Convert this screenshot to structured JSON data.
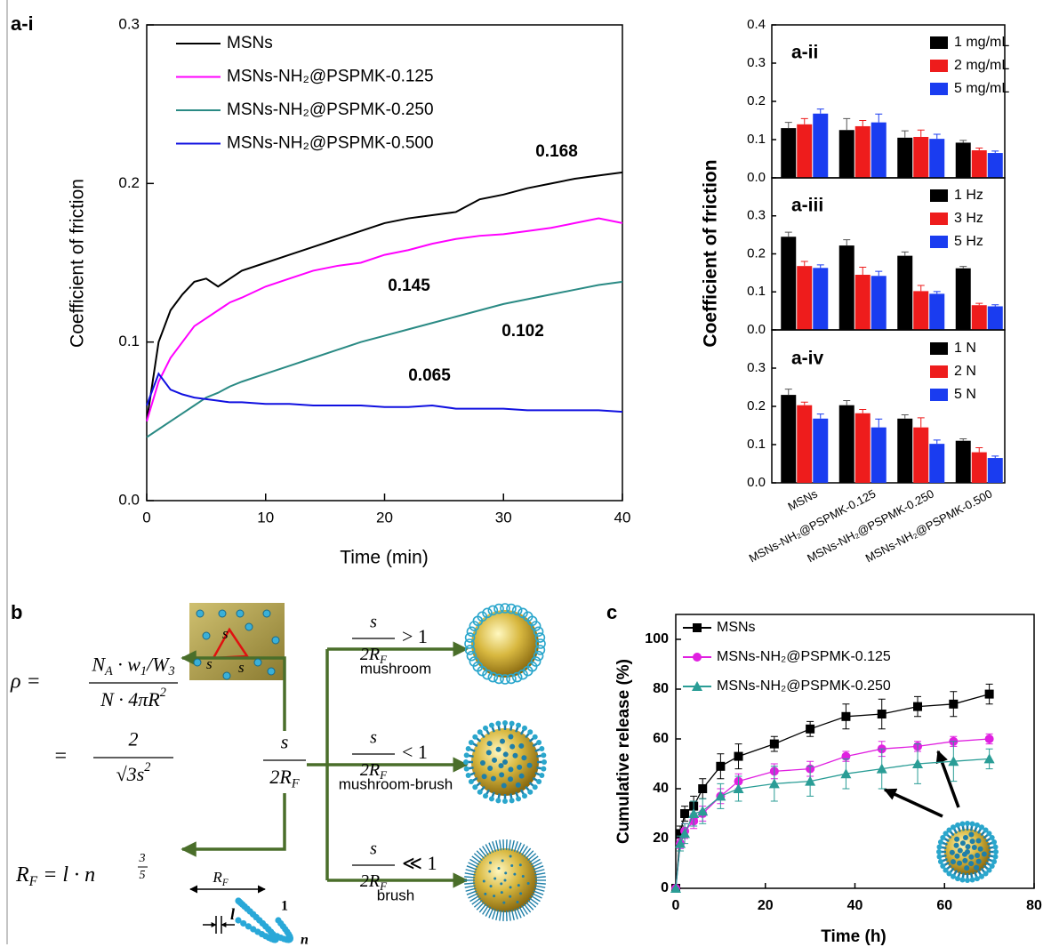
{
  "chart_data": [
    {
      "type": "line",
      "panel_label": "a-i",
      "x_label": "Time (min)",
      "y_label": "Coefficient of friction",
      "x": [
        0,
        1,
        2,
        3,
        4,
        5,
        6,
        7,
        8,
        10,
        12,
        14,
        16,
        18,
        20,
        22,
        24,
        26,
        28,
        30,
        32,
        34,
        36,
        38,
        40
      ],
      "series": [
        {
          "name": "MSNs",
          "color": "#000000",
          "values": [
            0.05,
            0.1,
            0.12,
            0.13,
            0.138,
            0.14,
            0.135,
            0.14,
            0.145,
            0.15,
            0.155,
            0.16,
            0.165,
            0.17,
            0.175,
            0.178,
            0.18,
            0.182,
            0.19,
            0.193,
            0.197,
            0.2,
            0.203,
            0.205,
            0.207
          ]
        },
        {
          "name": "MSNs-NH₂@PSPMK-0.125",
          "color": "#ff00ff",
          "values": [
            0.05,
            0.075,
            0.09,
            0.1,
            0.11,
            0.115,
            0.12,
            0.125,
            0.128,
            0.135,
            0.14,
            0.145,
            0.148,
            0.15,
            0.155,
            0.158,
            0.162,
            0.165,
            0.167,
            0.168,
            0.17,
            0.172,
            0.175,
            0.178,
            0.175
          ]
        },
        {
          "name": "MSNs-NH₂@PSPMK-0.250",
          "color": "#2a8a84",
          "values": [
            0.04,
            0.045,
            0.05,
            0.055,
            0.06,
            0.065,
            0.068,
            0.072,
            0.075,
            0.08,
            0.085,
            0.09,
            0.095,
            0.1,
            0.104,
            0.108,
            0.112,
            0.116,
            0.12,
            0.124,
            0.127,
            0.13,
            0.133,
            0.136,
            0.138
          ]
        },
        {
          "name": "MSNs-NH₂@PSPMK-0.500",
          "color": "#1010e0",
          "values": [
            0.06,
            0.08,
            0.07,
            0.067,
            0.065,
            0.064,
            0.063,
            0.062,
            0.062,
            0.061,
            0.061,
            0.06,
            0.06,
            0.06,
            0.059,
            0.059,
            0.06,
            0.058,
            0.058,
            0.058,
            0.057,
            0.057,
            0.057,
            0.057,
            0.056
          ]
        }
      ],
      "annotations": [
        {
          "text": "0.168",
          "color": "#000000"
        },
        {
          "text": "0.145",
          "color": "#ff00ff"
        },
        {
          "text": "0.102",
          "color": "#2a8a84"
        },
        {
          "text": "0.065",
          "color": "#1010e0"
        }
      ],
      "xlim": [
        0,
        40
      ],
      "xticks": [
        0,
        10,
        20,
        30,
        40
      ],
      "ylim": [
        0,
        0.3
      ],
      "yticks": [
        {
          "value": 0,
          "label": "0.0"
        },
        0.1,
        0.2,
        0.3
      ],
      "legend": "upper left"
    },
    {
      "type": "bar",
      "title": "a-ii",
      "categories": [
        null,
        null,
        null,
        null
      ],
      "series": [
        {
          "name": "1 mg/mL",
          "color": "#000000",
          "values": [
            0.13,
            0.125,
            0.105,
            0.092
          ],
          "errors": [
            0.015,
            0.03,
            0.018,
            0.006
          ]
        },
        {
          "name": "2 mg/mL",
          "color": "#ee1c1c",
          "values": [
            0.14,
            0.135,
            0.107,
            0.072
          ],
          "errors": [
            0.015,
            0.015,
            0.018,
            0.006
          ]
        },
        {
          "name": "5 mg/mL",
          "color": "#1a3cf0",
          "values": [
            0.168,
            0.145,
            0.102,
            0.065
          ],
          "errors": [
            0.012,
            0.022,
            0.012,
            0.005
          ]
        }
      ],
      "ylim": [
        0,
        0.4
      ],
      "yticks": [
        {
          "value": 0,
          "label": "0.0"
        },
        0.1,
        0.2,
        0.3,
        0.4
      ],
      "legend": "upper right"
    },
    {
      "type": "bar",
      "title": "a-iii",
      "y_label": "Coefficient of friction",
      "categories": [
        null,
        null,
        null,
        null
      ],
      "series": [
        {
          "name": "1 Hz",
          "color": "#000000",
          "values": [
            0.245,
            0.222,
            0.195,
            0.162
          ],
          "errors": [
            0.012,
            0.015,
            0.01,
            0.005
          ]
        },
        {
          "name": "3 Hz",
          "color": "#ee1c1c",
          "values": [
            0.168,
            0.145,
            0.102,
            0.065
          ],
          "errors": [
            0.012,
            0.02,
            0.015,
            0.005
          ]
        },
        {
          "name": "5 Hz",
          "color": "#1a3cf0",
          "values": [
            0.163,
            0.142,
            0.095,
            0.062
          ],
          "errors": [
            0.008,
            0.012,
            0.006,
            0.004
          ]
        }
      ],
      "ylim": [
        0,
        0.4
      ],
      "yticks": [
        {
          "value": 0,
          "label": "0.0"
        },
        0.1,
        0.2,
        0.3
      ],
      "legend": "upper right"
    },
    {
      "type": "bar",
      "title": "a-iv",
      "categories": [
        "MSNs",
        "MSNs-NH₂@PSPMK-0.125",
        "MSNs-NH₂@PSPMK-0.250",
        "MSNs-NH₂@PSPMK-0.500"
      ],
      "series": [
        {
          "name": "1 N",
          "color": "#000000",
          "values": [
            0.23,
            0.203,
            0.168,
            0.11
          ],
          "errors": [
            0.015,
            0.012,
            0.01,
            0.005
          ]
        },
        {
          "name": "2 N",
          "color": "#ee1c1c",
          "values": [
            0.203,
            0.182,
            0.145,
            0.08
          ],
          "errors": [
            0.008,
            0.01,
            0.025,
            0.012
          ]
        },
        {
          "name": "5 N",
          "color": "#1a3cf0",
          "values": [
            0.168,
            0.145,
            0.102,
            0.065
          ],
          "errors": [
            0.012,
            0.022,
            0.01,
            0.005
          ]
        }
      ],
      "ylim": [
        0,
        0.4
      ],
      "yticks": [
        {
          "value": 0,
          "label": "0.0"
        },
        0.1,
        0.2,
        0.3
      ],
      "legend": "upper right"
    },
    {
      "type": "line",
      "panel_label": "c",
      "x_label": "Time (h)",
      "y_label": "Cumulative release (%)",
      "x": [
        0,
        1,
        2,
        4,
        6,
        10,
        14,
        22,
        30,
        38,
        46,
        54,
        62,
        70
      ],
      "series": [
        {
          "name": "MSNs",
          "color": "#000000",
          "marker": "square",
          "values": [
            0,
            22,
            30,
            33,
            40,
            49,
            53,
            58,
            64,
            69,
            70,
            73,
            74,
            78
          ],
          "errors": [
            0,
            3,
            3,
            4,
            4,
            5,
            5,
            3,
            3,
            5,
            6,
            4,
            5,
            4
          ]
        },
        {
          "name": "MSNs-NH₂@PSPMK-0.125",
          "color": "#e020e0",
          "marker": "circle",
          "values": [
            0,
            18,
            23,
            27,
            30,
            37,
            43,
            47,
            48,
            53,
            56,
            57,
            59,
            60
          ],
          "errors": [
            0,
            2,
            3,
            3,
            3,
            3,
            3,
            3,
            3,
            2,
            3,
            2,
            2,
            2
          ]
        },
        {
          "name": "MSNs-NH₂@PSPMK-0.250",
          "color": "#2a9d96",
          "marker": "triangle",
          "values": [
            0,
            18,
            22,
            30,
            31,
            37,
            40,
            42,
            43,
            46,
            48,
            50,
            51,
            52
          ],
          "errors": [
            0,
            3,
            4,
            5,
            5,
            5,
            5,
            7,
            6,
            6,
            8,
            8,
            8,
            4
          ]
        }
      ],
      "xlim": [
        0,
        80
      ],
      "xticks": [
        0,
        20,
        40,
        60,
        80
      ],
      "ylim": [
        0,
        110
      ],
      "yticks": [
        0,
        20,
        40,
        60,
        80,
        100
      ],
      "legend": "upper left"
    }
  ],
  "diagram": {
    "panel_label": "b",
    "density_lhs": "ρ =",
    "density_num": [
      "N",
      {
        "sub": "A"
      },
      " · w",
      {
        "sub": "1"
      },
      "/W",
      {
        "sub": "3"
      }
    ],
    "density_den": [
      "N · 4πR",
      {
        "sup": "2"
      }
    ],
    "density_eq2": "=",
    "density_num2": "2",
    "density_den2": [
      "√3s",
      {
        "sup": "2"
      }
    ],
    "flory": [
      "R",
      {
        "sub": "F"
      },
      " = l · n"
    ],
    "flory_exp_num": "3",
    "flory_exp_den": "5",
    "ratio_num": "s",
    "ratio_den": [
      "2R",
      {
        "sub": "F"
      }
    ],
    "branches": [
      {
        "condition": "> 1",
        "label": "mushroom"
      },
      {
        "condition": "< 1",
        "label": "mushroom-brush"
      },
      {
        "condition": "≪ 1",
        "label": "brush"
      }
    ],
    "spacing": "s",
    "rf_label": [
      "R",
      {
        "sub": "F"
      }
    ],
    "chain_start": "1",
    "chain_end": "n",
    "segment": "l"
  }
}
